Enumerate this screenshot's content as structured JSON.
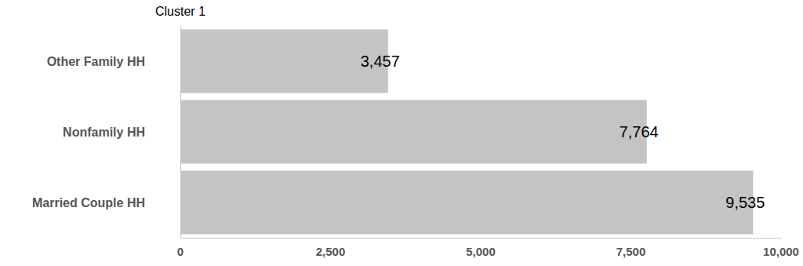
{
  "chart_data": {
    "type": "bar",
    "title": "Cluster 1",
    "orientation": "horizontal",
    "categories": [
      "Married Couple HH",
      "Nonfamily HH",
      "Other Family HH"
    ],
    "values": [
      9535,
      7764,
      3457
    ],
    "value_labels": [
      "9,535",
      "7,764",
      "3,457"
    ],
    "color": "#c4c4c4",
    "xlim": [
      0,
      10000
    ],
    "xticks": [
      0,
      {
        "value": 2500,
        "label": "2,500"
      },
      {
        "value": 5000,
        "label": "5,000"
      },
      {
        "value": 7500,
        "label": "7,500"
      },
      {
        "value": 10000,
        "label": "10,000"
      }
    ],
    "grid": false,
    "data_labels": true
  }
}
